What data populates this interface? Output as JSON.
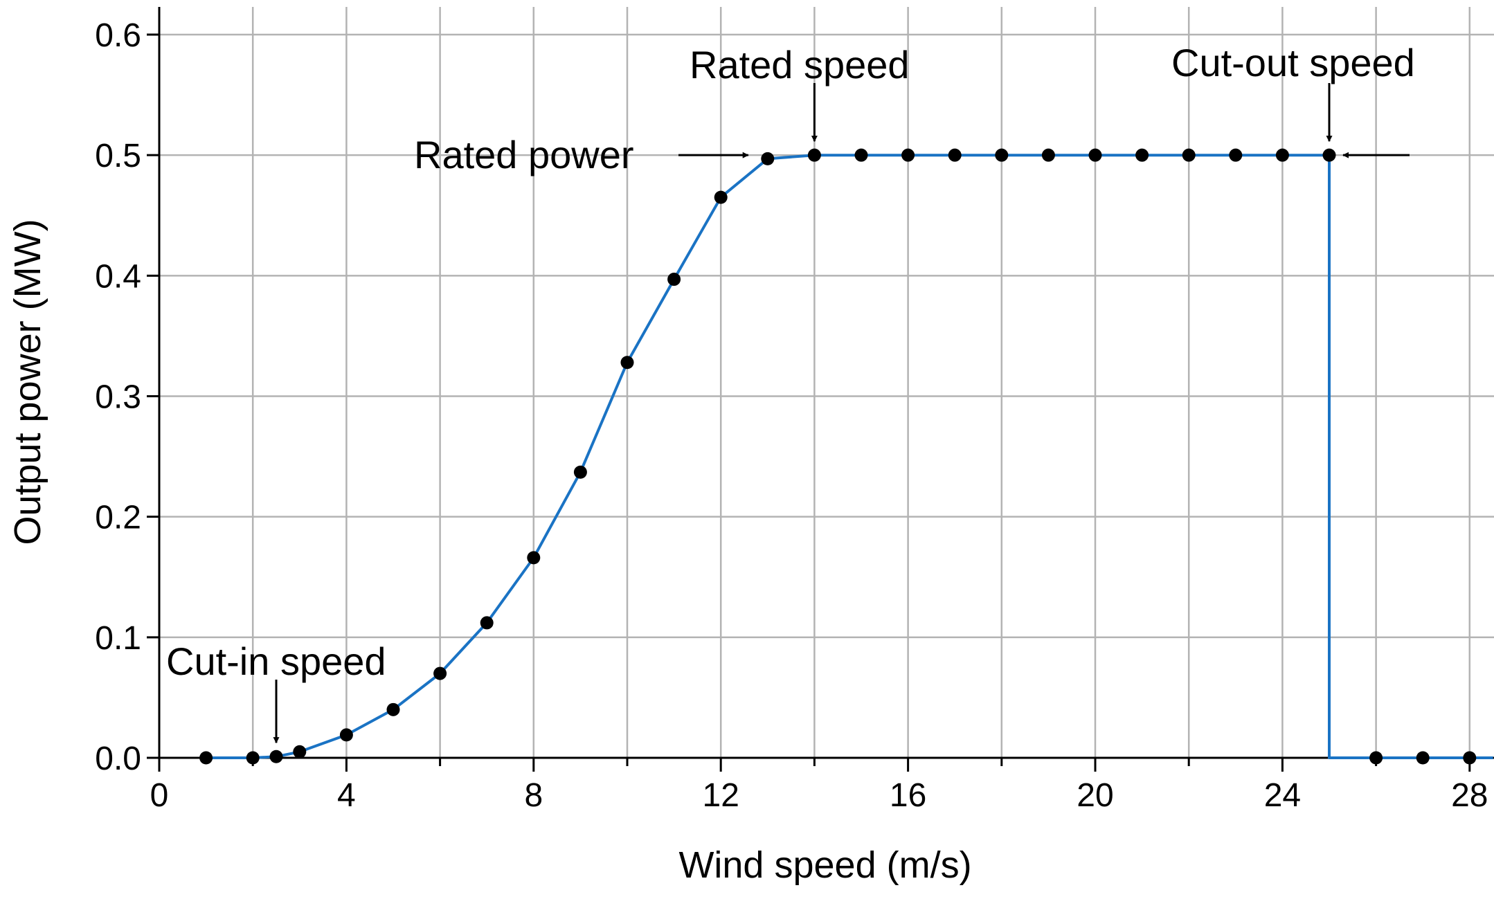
{
  "chart_data": {
    "type": "line",
    "title": "",
    "xlabel": "Wind speed (m/s)",
    "ylabel": "Output power (MW)",
    "xlim": [
      0,
      28.5
    ],
    "ylim": [
      0,
      0.6
    ],
    "xticks": [
      0,
      4,
      8,
      12,
      16,
      20,
      24,
      28
    ],
    "xtick_labels": [
      "0",
      "4",
      "8",
      "12",
      "16",
      "20",
      "24",
      "28"
    ],
    "yticks": [
      0,
      0.1,
      0.2,
      0.3,
      0.4,
      0.5,
      0.6
    ],
    "ytick_labels": [
      "0.0",
      "0.1",
      "0.2",
      "0.3",
      "0.4",
      "0.5",
      "0.6"
    ],
    "x_gridlines": [
      0,
      2,
      4,
      6,
      8,
      10,
      12,
      14,
      16,
      18,
      20,
      22,
      24,
      26,
      28
    ],
    "y_gridlines": [
      0,
      0.1,
      0.2,
      0.3,
      0.4,
      0.5,
      0.6
    ],
    "grid": true,
    "legend": "none",
    "colors": {
      "curve": "#1a73c4",
      "points": "#000000",
      "grid": "#b3b3b3"
    },
    "curve": {
      "x": [
        1,
        2,
        2.5,
        3,
        4,
        5,
        6,
        7,
        8,
        9,
        10,
        11,
        12,
        13,
        14,
        15,
        16,
        17,
        18,
        19,
        20,
        21,
        22,
        23,
        24,
        25,
        25,
        26,
        27,
        28,
        28.5
      ],
      "y": [
        0,
        0,
        0.001,
        0.005,
        0.019,
        0.04,
        0.07,
        0.112,
        0.166,
        0.237,
        0.328,
        0.397,
        0.465,
        0.497,
        0.5,
        0.5,
        0.5,
        0.5,
        0.5,
        0.5,
        0.5,
        0.5,
        0.5,
        0.5,
        0.5,
        0.5,
        0,
        0,
        0,
        0,
        0
      ]
    },
    "points": {
      "x": [
        1,
        2,
        2.5,
        3,
        4,
        5,
        6,
        7,
        8,
        9,
        10,
        11,
        12,
        13,
        14,
        15,
        16,
        17,
        18,
        19,
        20,
        21,
        22,
        23,
        24,
        25,
        26,
        27,
        28
      ],
      "y": [
        0,
        0,
        0.001,
        0.005,
        0.019,
        0.04,
        0.07,
        0.112,
        0.166,
        0.237,
        0.328,
        0.397,
        0.465,
        0.497,
        0.5,
        0.5,
        0.5,
        0.5,
        0.5,
        0.5,
        0.5,
        0.5,
        0.5,
        0.5,
        0.5,
        0.5,
        0,
        0,
        0
      ]
    },
    "annotations": [
      {
        "text": "Cut-in speed",
        "x": 2.5,
        "y": 0.001,
        "arrow": "down"
      },
      {
        "text": "Rated power",
        "x": 13,
        "y": 0.5,
        "arrow": "right"
      },
      {
        "text": "Rated speed",
        "x": 14,
        "y": 0.5,
        "arrow": "down"
      },
      {
        "text": "Cut-out speed",
        "x": 25,
        "y": 0.5,
        "arrow": "down-and-left"
      }
    ]
  }
}
